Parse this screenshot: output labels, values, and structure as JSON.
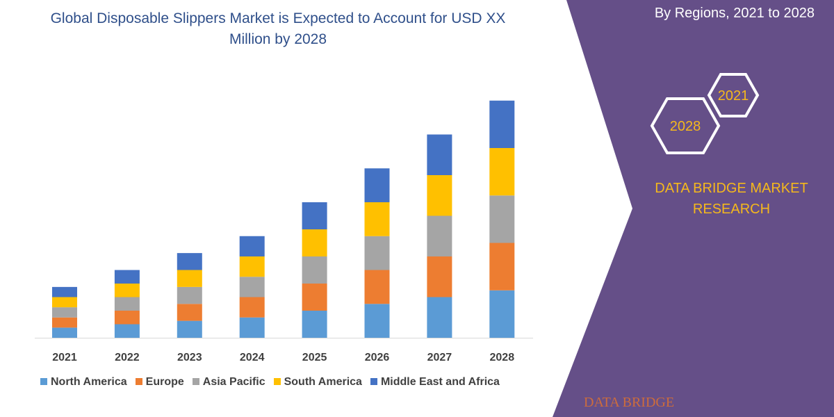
{
  "title": "Global Disposable Slippers Market is Expected to Account for USD XX Million by 2028",
  "subtitle": "By Regions, 2021 to 2028",
  "brand": "DATA BRIDGE MARKET RESEARCH",
  "logo_text": "DATA BRIDGE",
  "hexagons": [
    "2021",
    "2028"
  ],
  "colors": {
    "panel": "#654f88",
    "accent": "#f5b81c",
    "title": "#2f4f8a"
  },
  "chart_data": {
    "type": "bar",
    "stacked": true,
    "categories": [
      "2021",
      "2022",
      "2023",
      "2024",
      "2025",
      "2026",
      "2027",
      "2028"
    ],
    "series": [
      {
        "name": "North America",
        "color": "#5b9bd5",
        "values": [
          15,
          20,
          25,
          30,
          40,
          50,
          60,
          70
        ]
      },
      {
        "name": "Europe",
        "color": "#ed7d31",
        "values": [
          15,
          20,
          25,
          30,
          40,
          50,
          60,
          70
        ]
      },
      {
        "name": "Asia Pacific",
        "color": "#a5a5a5",
        "values": [
          15,
          20,
          25,
          30,
          40,
          50,
          60,
          70
        ]
      },
      {
        "name": "South America",
        "color": "#ffc000",
        "values": [
          15,
          20,
          25,
          30,
          40,
          50,
          60,
          70
        ]
      },
      {
        "name": "Middle East and Africa",
        "color": "#4472c4",
        "values": [
          15,
          20,
          25,
          30,
          40,
          50,
          60,
          70
        ]
      }
    ],
    "ylim": [
      0,
      360
    ],
    "grid": false,
    "legend": "bottom",
    "value_axis_shown": false
  }
}
